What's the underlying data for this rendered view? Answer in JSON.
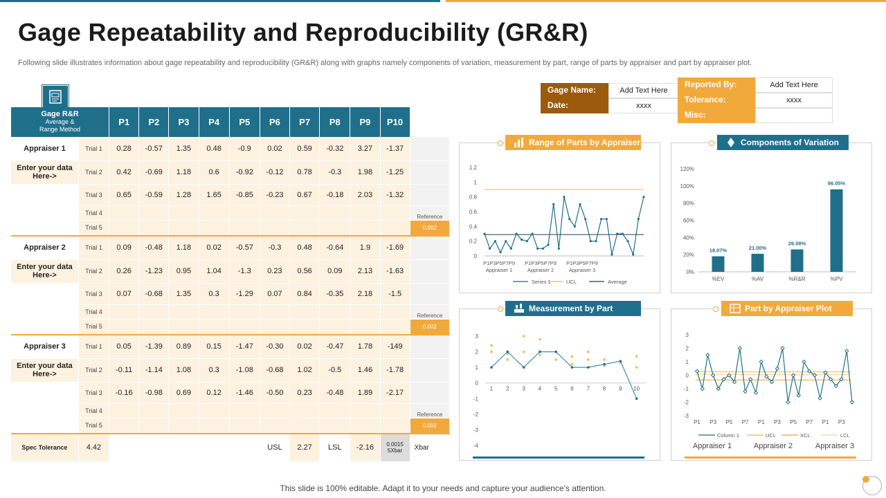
{
  "title": "Gage Repeatability and Reproducibility (GR&R)",
  "subtitle": "Following slide illustrates information about gage repeatability and reproducibility (GR&R) along with graphs namely components of variation, measurement by part, range of parts by appraiser and part by appraiser plot.",
  "footer": "This slide is 100% editable. Adapt it to your needs and capture your audience's attention.",
  "info": {
    "gage_name_label": "Gage Name:",
    "gage_name_value": "Add Text Here",
    "date_label": "Date:",
    "date_value": "xxxx",
    "reported_by_label": "Reported By:",
    "reported_by_value": "Add Text Here",
    "tolerance_label": "Tolerance:",
    "tolerance_value": "xxxx",
    "misc_label": "Misc:",
    "misc_value": ""
  },
  "table": {
    "header_title": "Gage R&R",
    "header_sub1": "Average &",
    "header_sub2": "Range Method",
    "parts": [
      "P1",
      "P2",
      "P3",
      "P4",
      "P5",
      "P6",
      "P7",
      "P8",
      "P9",
      "P10"
    ],
    "groups": [
      {
        "appraiser": "Appraiser 1",
        "enter": "Enter your data Here->",
        "trials": [
          {
            "label": "Trial 1",
            "values": [
              "0.28",
              "-0.57",
              "1.35",
              "0.48",
              "-0.9",
              "0.02",
              "0.59",
              "-0.32",
              "3.27",
              "-1.37"
            ]
          },
          {
            "label": "Trial 2",
            "values": [
              "0.42",
              "-0.69",
              "1.18",
              "0.6",
              "-0.92",
              "-0.12",
              "0.78",
              "-0.3",
              "1.98",
              "-1.25"
            ]
          },
          {
            "label": "Trial 3",
            "values": [
              "0.65",
              "-0.59",
              "1.28",
              "1.65",
              "-0.85",
              "-0.23",
              "0.67",
              "-0.18",
              "2.03",
              "-1.32"
            ]
          },
          {
            "label": "Trial 4",
            "values": [
              "",
              "",
              "",
              "",
              "",
              "",
              "",
              "",
              "",
              ""
            ]
          },
          {
            "label": "Trial 5",
            "values": [
              "",
              "",
              "",
              "",
              "",
              "",
              "",
              "",
              "",
              ""
            ]
          }
        ],
        "reference": "Reference",
        "ref_value": "0.002"
      },
      {
        "appraiser": "Appraiser 2",
        "enter": "Enter your data Here->",
        "trials": [
          {
            "label": "Trial 1",
            "values": [
              "0.09",
              "-0.48",
              "1.18",
              "0.02",
              "-0.57",
              "-0.3",
              "0.48",
              "-0.64",
              "1.9",
              "-1.69"
            ]
          },
          {
            "label": "Trial 2",
            "values": [
              "0.26",
              "-1.23",
              "0.95",
              "1.04",
              "-1.3",
              "0.23",
              "0.56",
              "0.09",
              "2.13",
              "-1.63"
            ]
          },
          {
            "label": "Trial 3",
            "values": [
              "0.07",
              "-0.68",
              "1.35",
              "0.3",
              "-1.29",
              "0.07",
              "0.84",
              "-0.35",
              "2.18",
              "-1.5"
            ]
          },
          {
            "label": "Trial 4",
            "values": [
              "",
              "",
              "",
              "",
              "",
              "",
              "",
              "",
              "",
              ""
            ]
          },
          {
            "label": "Trial 5",
            "values": [
              "",
              "",
              "",
              "",
              "",
              "",
              "",
              "",
              "",
              ""
            ]
          }
        ],
        "reference": "Reference",
        "ref_value": "0.002"
      },
      {
        "appraiser": "Appraiser 3",
        "enter": "Enter your data Here->",
        "trials": [
          {
            "label": "Trial 1",
            "values": [
              "0.05",
              "-1.39",
              "0.89",
              "0.15",
              "-1.47",
              "-0.30",
              "0.02",
              "-0.47",
              "1.78",
              "-149"
            ]
          },
          {
            "label": "Trial 2",
            "values": [
              "-0.11",
              "-1.14",
              "1.08",
              "0.3",
              "-1.08",
              "-0.68",
              "1.02",
              "-0.5",
              "1.46",
              "-1.78"
            ]
          },
          {
            "label": "Trial 3",
            "values": [
              "-0.16",
              "-0.98",
              "0.69",
              "0.12",
              "-1.46",
              "-0.50",
              "0.23",
              "-0.48",
              "1.89",
              "-2.17"
            ]
          },
          {
            "label": "Trial 4",
            "values": [
              "",
              "",
              "",
              "",
              "",
              "",
              "",
              "",
              "",
              ""
            ]
          },
          {
            "label": "Trial 5",
            "values": [
              "",
              "",
              "",
              "",
              "",
              "",
              "",
              "",
              "",
              ""
            ]
          }
        ],
        "reference": "Reference",
        "ref_value": "0.002"
      }
    ],
    "spec": {
      "label": "Spec Tolerance",
      "value": "4.42",
      "usl_label": "USL",
      "usl_value": "2.27",
      "lsl_label": "LSL",
      "lsl_value": "-2.16",
      "xbar_value_1": "0.0015",
      "xbar_value_2": "5Xbar",
      "xbar_label": "Xbar"
    }
  },
  "chart_data": [
    {
      "type": "line",
      "title": "Range of Parts by Appraiser",
      "ylim": [
        0,
        1.2
      ],
      "yticks": [
        "0",
        "0.2",
        "0.4",
        "0.6",
        "0.8",
        "1",
        "1.2"
      ],
      "group_labels": [
        "P1P3P5P7P9",
        "P1P3P5P7P9",
        "P1P3P5P7P9"
      ],
      "appraiser_labels": [
        "Appraiser  1",
        "Appraiser  2",
        "Appraiser  3"
      ],
      "series": [
        {
          "name": "Series 1",
          "color": "#1f6f8b",
          "values": [
            0.3,
            0.1,
            0.2,
            0.05,
            0.2,
            0.1,
            0.3,
            0.22,
            0.2,
            0.3,
            0.1,
            0.1,
            0.15,
            0.7,
            0.1,
            0.8,
            0.5,
            0.4,
            0.7,
            0.5,
            0.2,
            0.2,
            0.5,
            0.5,
            0.02,
            0.3,
            0.3,
            0.2,
            0.02,
            0.5,
            0.8
          ]
        },
        {
          "name": "UCL",
          "color": "#e8b84a",
          "constant": 0.9
        },
        {
          "name": "Average",
          "color": "#1f3b57",
          "constant": 0.29
        }
      ]
    },
    {
      "type": "bar",
      "title": "Components of Variation",
      "categories": [
        "%EV",
        "%AV",
        "%R&R",
        "%PV"
      ],
      "values": [
        18.07,
        21.0,
        26.08,
        96.05
      ],
      "value_labels": [
        "18.07%",
        "21.00%",
        "26.08%",
        "96.05%"
      ],
      "ylim": [
        0,
        120
      ],
      "yticks": [
        "0%",
        "20%",
        "40%",
        "60%",
        "80%",
        "100%",
        "120%"
      ]
    },
    {
      "type": "scatter",
      "title": "Measurement by Part",
      "x": [
        "1",
        "2",
        "3",
        "4",
        "5",
        "6",
        "7",
        "8",
        "9",
        "10"
      ],
      "ylim": [
        -4,
        3
      ],
      "yticks": [
        "3",
        "2",
        "1",
        "0",
        "-1",
        "-2",
        "-3",
        "-4"
      ],
      "line_values": [
        1.0,
        2.0,
        1.0,
        2.0,
        2.0,
        1.0,
        1.0,
        1.2,
        1.4,
        -1.0
      ],
      "scatter_points": [
        [
          1,
          2.4
        ],
        [
          1,
          2.0
        ],
        [
          2,
          1.9
        ],
        [
          2,
          1.5
        ],
        [
          3,
          3.0
        ],
        [
          3,
          2.0
        ],
        [
          4,
          2.8
        ],
        [
          4,
          1.8
        ],
        [
          5,
          1.5
        ],
        [
          6,
          1.2
        ],
        [
          6,
          1.7
        ],
        [
          7,
          2.0
        ],
        [
          7,
          1.5
        ],
        [
          8,
          1.5
        ],
        [
          8,
          1.1
        ],
        [
          9,
          1.3
        ],
        [
          10,
          1.7
        ],
        [
          10,
          1.0
        ]
      ]
    },
    {
      "type": "line",
      "title": "Part by Appraiser Plot",
      "ylim": [
        -3,
        3
      ],
      "yticks": [
        "3",
        "2",
        "1",
        "0",
        "-1",
        "-2",
        "-3"
      ],
      "x_labels": [
        "P1",
        "P3",
        "P5",
        "P7",
        "P1",
        "P3",
        "P5",
        "P7",
        "P1",
        "P3"
      ],
      "group_labels": [
        "Appraiser 1",
        "Appraiser 2",
        "Appraiser 3"
      ],
      "legend": [
        "Column 1",
        "UCL",
        "XCL",
        "LCL"
      ],
      "series": [
        {
          "name": "Column 1",
          "color": "#1f6f8b",
          "values": [
            0.3,
            -1.0,
            1.5,
            0.0,
            -1.0,
            -0.3,
            0.0,
            -0.5,
            2.0,
            -1.2,
            -0.3,
            -1.3,
            1.0,
            -0.1,
            -0.5,
            0.5,
            2.0,
            -2.0,
            0.0,
            -1.5,
            1.0,
            0.3,
            0.0,
            -1.7,
            0.2,
            -0.3,
            -0.8,
            -0.3,
            1.8,
            -2.0
          ]
        },
        {
          "name": "UCL",
          "color": "#e8b84a",
          "constant": 0.25
        },
        {
          "name": "XCL",
          "color": "#e8a23a",
          "constant": -0.35
        },
        {
          "name": "LCL",
          "color": "#f5d48a",
          "constant": 0.05
        }
      ]
    }
  ]
}
